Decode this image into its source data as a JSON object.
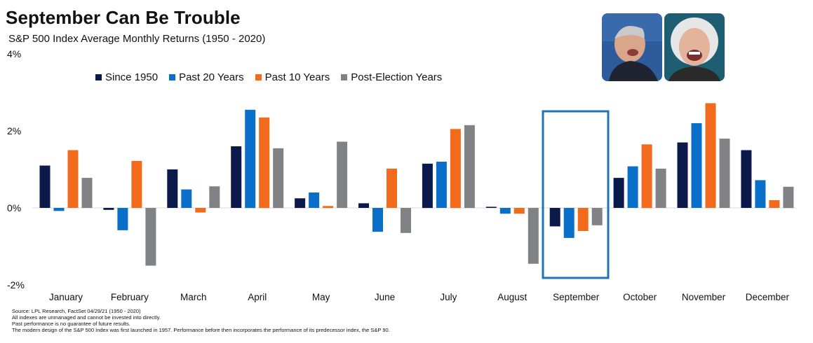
{
  "chart_data": {
    "type": "bar",
    "title": "September Can Be Trouble",
    "subtitle": "S&P 500 Index Average Monthly Returns (1950 - 2020)",
    "categories": [
      "January",
      "February",
      "March",
      "April",
      "May",
      "June",
      "July",
      "August",
      "September",
      "October",
      "November",
      "December"
    ],
    "series": [
      {
        "name": "Since 1950",
        "color": "#0b1a4a",
        "values": [
          1.1,
          -0.05,
          1.0,
          1.6,
          0.25,
          0.12,
          1.15,
          0.03,
          -0.48,
          0.78,
          1.7,
          1.5
        ]
      },
      {
        "name": "Past 20 Years",
        "color": "#0a6fc9",
        "values": [
          -0.08,
          -0.58,
          0.48,
          2.55,
          0.4,
          -0.62,
          1.2,
          -0.15,
          -0.78,
          1.08,
          2.2,
          0.72
        ]
      },
      {
        "name": "Past 10 Years",
        "color": "#f26a1b",
        "values": [
          1.5,
          1.22,
          -0.12,
          2.35,
          0.05,
          1.02,
          2.05,
          -0.15,
          -0.6,
          1.65,
          2.72,
          0.2
        ]
      },
      {
        "name": "Post-Election Years",
        "color": "#808285",
        "values": [
          0.78,
          -1.5,
          0.56,
          1.55,
          1.72,
          -0.65,
          2.15,
          -1.45,
          -0.45,
          1.02,
          1.8,
          0.55
        ]
      }
    ],
    "y_ticks": [
      "4%",
      "2%",
      "0%",
      "-2%"
    ],
    "ylim": [
      -2,
      4
    ],
    "highlight_category": "September",
    "grid": false,
    "legend_position": "top-left"
  },
  "footnotes": [
    "Source: LPL Research, FactSet 04/29/21  (1950 - 2020)",
    "All indexes are unmanaged  and cannot be invested  into directly.",
    "Past performance is no guarantee of future results.",
    "The modern design of the S&P 500 Index was first launched  in 1957. Performance before then incorporates the performance of its  predecessor index, the S&P 90."
  ]
}
